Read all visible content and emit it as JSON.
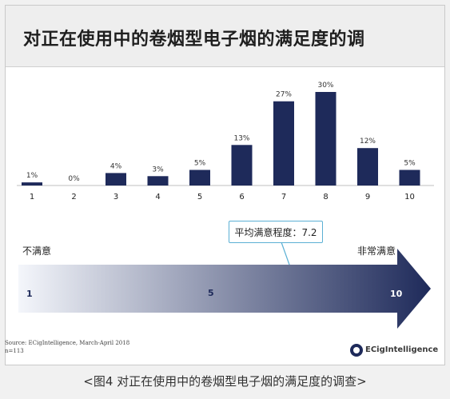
{
  "title": "对正在使用中的卷烟型电子烟的满足度的调",
  "chart_data": {
    "type": "bar",
    "categories": [
      "1",
      "2",
      "3",
      "4",
      "5",
      "6",
      "7",
      "8",
      "9",
      "10"
    ],
    "values": [
      1,
      0,
      4,
      3,
      5,
      13,
      27,
      30,
      12,
      5
    ],
    "value_labels": [
      "1%",
      "0%",
      "4%",
      "3%",
      "5%",
      "13%",
      "27%",
      "30%",
      "12%",
      "5%"
    ],
    "unit": "%",
    "bar_color": "#1e2a5a",
    "grid": false
  },
  "scale": {
    "average_label": "平均满意程度：7.2",
    "average_value": 7.2,
    "left_label": "不满意",
    "right_label": "非常满意",
    "points": [
      "1",
      "5",
      "10"
    ],
    "gradient_start": "#f4f6fb",
    "gradient_end": "#1e2a5a"
  },
  "source": {
    "line1": "Source: ECigIntelligence, March-April 2018",
    "line2": "n=113"
  },
  "logo": {
    "text": "ECigIntelligence",
    "icon": "ecig-logo-icon"
  },
  "caption": "<图4 对正在使用中的卷烟型电子烟的满足度的调查>"
}
